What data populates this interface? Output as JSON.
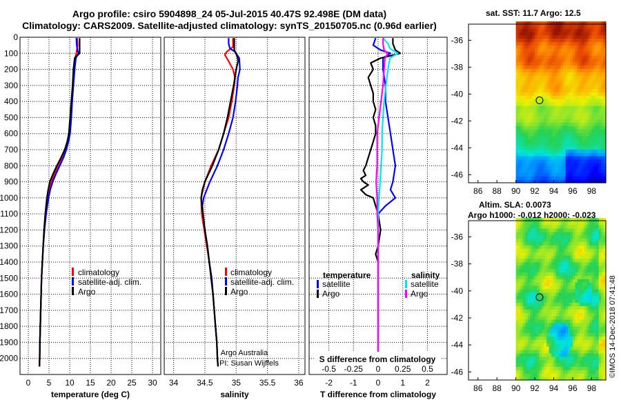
{
  "header": {
    "line1": "Argo profile: csiro 5904898_24 05-Jul-2015 40.47S 92.498E (DM data)",
    "line2": "Climatology: CARS2009. Satellite-adjusted climatology: synTS_20150705.nc (0.96d earlier)"
  },
  "colors": {
    "argo": "#000000",
    "clim": "#ff0000",
    "satclim": "#0000ff",
    "sal_sat": "#00e5ee",
    "sal_argo": "#ff00ff"
  },
  "chart_data": [
    {
      "type": "line",
      "id": "temperature",
      "xlabel": "temperature (deg C)",
      "ylabel": "",
      "xlim": [
        -2,
        32
      ],
      "ylim": [
        2100,
        0
      ],
      "x_ticks": [
        "0",
        "5",
        "10",
        "15",
        "20",
        "25",
        "30"
      ],
      "x_tick_values": [
        0,
        5,
        10,
        15,
        20,
        25,
        30
      ],
      "y_ticks": [
        "0",
        "100",
        "200",
        "300",
        "400",
        "500",
        "600",
        "700",
        "800",
        "900",
        "1000",
        "1100",
        "1200",
        "1300",
        "1400",
        "1500",
        "1600",
        "1700",
        "1800",
        "1900",
        "2000"
      ],
      "y_tick_values": [
        0,
        100,
        200,
        300,
        400,
        500,
        600,
        700,
        800,
        900,
        1000,
        1100,
        1200,
        1300,
        1400,
        1500,
        1600,
        1700,
        1800,
        1900,
        2000
      ],
      "legend": [
        {
          "label": "climatology",
          "color": "#ff0000"
        },
        {
          "label": "satellite-adj. clim.",
          "color": "#0000ff"
        },
        {
          "label": "Argo",
          "color": "#000000"
        }
      ],
      "series": [
        {
          "name": "climatology",
          "color": "#ff0000",
          "depth": [
            5,
            50,
            100,
            130,
            200,
            300,
            400,
            500,
            600,
            650,
            700,
            750,
            800,
            850,
            900,
            950,
            1000,
            1100,
            1200,
            1300,
            1400,
            1500,
            1600,
            1700,
            1800,
            1900,
            2000,
            2050
          ],
          "values": [
            11.8,
            11.9,
            11.6,
            11.3,
            11.0,
            10.8,
            10.6,
            10.3,
            10.0,
            9.6,
            9.0,
            8.2,
            7.2,
            6.3,
            5.6,
            5.1,
            4.8,
            4.3,
            3.9,
            3.6,
            3.4,
            3.2,
            3.1,
            3.0,
            2.9,
            2.8,
            2.75,
            2.7
          ]
        },
        {
          "name": "satellite-adj. clim.",
          "color": "#0000ff",
          "depth": [
            5,
            50,
            80,
            100,
            130,
            200,
            300,
            400,
            500,
            600,
            650,
            700,
            750,
            800,
            850,
            900,
            950,
            1000,
            1100,
            1200,
            1300,
            1400,
            1500,
            1600,
            1700,
            1800,
            1900,
            2000,
            2050
          ],
          "values": [
            11.6,
            11.7,
            11.9,
            12.1,
            11.5,
            11.2,
            10.9,
            10.6,
            10.4,
            10.1,
            9.7,
            9.2,
            8.5,
            7.6,
            6.7,
            5.9,
            5.3,
            4.9,
            4.3,
            3.9,
            3.6,
            3.4,
            3.2,
            3.1,
            3.0,
            2.9,
            2.8,
            2.75,
            2.7
          ]
        },
        {
          "name": "Argo",
          "color": "#000000",
          "depth": [
            5,
            30,
            60,
            100,
            110,
            130,
            200,
            300,
            400,
            500,
            600,
            650,
            700,
            750,
            800,
            850,
            900,
            950,
            1000,
            1100,
            1200,
            1300,
            1400,
            1500,
            1600,
            1700,
            1800,
            1900,
            2000,
            2050
          ],
          "values": [
            12.4,
            12.4,
            12.4,
            12.4,
            12.0,
            11.2,
            10.9,
            10.7,
            10.4,
            10.1,
            9.8,
            9.4,
            8.8,
            7.9,
            6.9,
            6.0,
            5.2,
            4.8,
            4.5,
            4.1,
            3.8,
            3.6,
            3.4,
            3.2,
            3.1,
            3.0,
            2.9,
            2.8,
            2.75,
            2.7
          ]
        }
      ]
    },
    {
      "type": "line",
      "id": "salinity",
      "xlabel": "salinity",
      "xlim": [
        33.85,
        36.1
      ],
      "ylim": [
        2100,
        0
      ],
      "x_ticks": [
        "34",
        "34.5",
        "35",
        "35.5",
        "36"
      ],
      "x_tick_values": [
        34,
        34.5,
        35,
        35.5,
        36
      ],
      "legend": [
        {
          "label": "climatology",
          "color": "#ff0000"
        },
        {
          "label": "satellite-adj. clim.",
          "color": "#0000ff"
        },
        {
          "label": "Argo",
          "color": "#000000"
        }
      ],
      "annotation": [
        "Argo Australia",
        "PI: Susan Wijffels"
      ],
      "series": [
        {
          "name": "climatology",
          "color": "#ff0000",
          "depth": [
            5,
            60,
            90,
            110,
            150,
            200,
            250,
            300,
            400,
            500,
            600,
            700,
            800,
            900,
            1000,
            1100,
            1200,
            1300,
            1400,
            1500,
            1600,
            1700,
            1800,
            1900,
            2000,
            2050
          ],
          "values": [
            34.95,
            34.95,
            34.85,
            34.82,
            34.88,
            34.95,
            34.98,
            34.97,
            34.93,
            34.88,
            34.8,
            34.72,
            34.6,
            34.5,
            34.44,
            34.45,
            34.49,
            34.53,
            34.57,
            34.6,
            34.63,
            34.65,
            34.67,
            34.69,
            34.7,
            34.71
          ]
        },
        {
          "name": "satellite-adj. clim.",
          "color": "#0000ff",
          "depth": [
            5,
            40,
            70,
            90,
            130,
            200,
            250,
            300,
            400,
            500,
            600,
            700,
            800,
            900,
            1000,
            1050,
            1100,
            1200,
            1300,
            1400,
            1500,
            1600,
            1700,
            1800,
            1900,
            2000,
            2050
          ],
          "values": [
            34.88,
            34.88,
            34.9,
            34.98,
            35.05,
            35.06,
            35.03,
            35.02,
            34.99,
            34.95,
            34.88,
            34.8,
            34.7,
            34.58,
            34.48,
            34.46,
            34.47,
            34.5,
            34.54,
            34.57,
            34.61,
            34.63,
            34.65,
            34.67,
            34.69,
            34.7,
            34.71
          ]
        },
        {
          "name": "Argo",
          "color": "#000000",
          "depth": [
            5,
            40,
            80,
            120,
            150,
            200,
            250,
            300,
            400,
            500,
            600,
            700,
            800,
            850,
            900,
            950,
            1000,
            1050,
            1100,
            1200,
            1300,
            1400,
            1500,
            1600,
            1700,
            1800,
            1900,
            2000,
            2050
          ],
          "values": [
            34.97,
            34.97,
            34.97,
            35.02,
            35.03,
            35.0,
            34.98,
            34.96,
            34.91,
            34.86,
            34.8,
            34.72,
            34.62,
            34.56,
            34.5,
            34.46,
            34.44,
            34.45,
            34.47,
            34.5,
            34.54,
            34.57,
            34.6,
            34.63,
            34.65,
            34.67,
            34.69,
            34.7,
            34.71
          ]
        }
      ]
    },
    {
      "type": "line",
      "id": "difference",
      "xlabel": "T difference from climatology",
      "xlabel2": "S difference from climatology",
      "xlim": [
        -2.8,
        2.8
      ],
      "x_ticks": [
        "-2",
        "-1",
        "0",
        "1",
        "2"
      ],
      "x_tick_values": [
        -2,
        -1,
        0,
        1,
        2
      ],
      "s_ticks": [
        "-0.5",
        "-0.25",
        "0",
        "0.25",
        "0.5"
      ],
      "s_tick_values": [
        -0.5,
        -0.25,
        0,
        0.25,
        0.5
      ],
      "ylim": [
        2100,
        0
      ],
      "legend_temperature_title": "temperature",
      "legend_salinity_title": "salinity",
      "legend_temperature": [
        {
          "label": "satellite",
          "color": "#0000ff"
        },
        {
          "label": "Argo",
          "color": "#000000"
        }
      ],
      "legend_salinity": [
        {
          "label": "satellite",
          "color": "#00e5ee"
        },
        {
          "label": "Argo",
          "color": "#ff00ff"
        }
      ],
      "series": [
        {
          "name": "T satellite",
          "color": "#0000ff",
          "depth": [
            5,
            50,
            80,
            100,
            130,
            200,
            300,
            400,
            500,
            600,
            700,
            800,
            900,
            950,
            1000,
            1050,
            1100,
            1200,
            1300,
            1400,
            1500,
            1700,
            1900,
            2050
          ],
          "values": [
            -0.1,
            -0.2,
            0.1,
            0.5,
            0.2,
            0.2,
            0.3,
            0.3,
            0.4,
            0.5,
            0.6,
            0.7,
            0.6,
            0.5,
            0.7,
            0.3,
            0.0,
            0.0,
            0.0,
            0.0,
            0.0,
            0.0,
            0.0,
            0.0
          ]
        },
        {
          "name": "T Argo",
          "color": "#000000",
          "depth": [
            5,
            40,
            80,
            100,
            130,
            160,
            200,
            250,
            300,
            350,
            400,
            450,
            500,
            550,
            600,
            650,
            700,
            750,
            800,
            830,
            860,
            880,
            900,
            920,
            950,
            980,
            1000,
            1050,
            1100,
            1200,
            1300,
            1350,
            1400,
            1500,
            1700,
            1900,
            2050
          ],
          "values": [
            0.6,
            0.6,
            0.7,
            0.9,
            0.1,
            -0.3,
            -0.2,
            -0.4,
            -0.3,
            -0.2,
            -0.2,
            -0.1,
            -0.2,
            -0.1,
            -0.1,
            -0.2,
            -0.3,
            -0.4,
            -0.5,
            -0.6,
            -0.5,
            -0.7,
            -0.6,
            -0.4,
            -0.7,
            -0.5,
            -0.2,
            -0.1,
            0.0,
            0.1,
            0.0,
            -0.1,
            0.0,
            0.0,
            0.0,
            0.0,
            0.0
          ]
        },
        {
          "name": "S satellite",
          "color": "#00e5ee",
          "depth": [
            5,
            40,
            70,
            100,
            130,
            200,
            300,
            400,
            500,
            600,
            700,
            800,
            900,
            1000,
            1100,
            1200,
            1300,
            1400,
            1500,
            1600,
            1700,
            1800,
            1900,
            2000,
            2050
          ],
          "values": [
            0.05,
            0.1,
            0.12,
            0.2,
            0.12,
            0.1,
            0.08,
            0.06,
            0.05,
            0.04,
            0.04,
            0.03,
            0.02,
            0.01,
            0.0,
            0.0,
            0.0,
            0.0,
            0.0,
            0.0,
            0.0,
            0.0,
            0.0,
            0.0,
            0.0
          ]
        },
        {
          "name": "S Argo",
          "color": "#ff00ff",
          "depth": [
            5,
            40,
            80,
            100,
            130,
            200,
            300,
            400,
            500,
            600,
            700,
            800,
            900,
            1000,
            1100,
            1200,
            1300,
            1400,
            1500,
            1600,
            1700,
            1800,
            1900,
            2000,
            2050
          ],
          "values": [
            0.05,
            0.05,
            0.06,
            0.1,
            0.07,
            0.06,
            0.05,
            0.03,
            0.01,
            -0.01,
            -0.01,
            -0.01,
            -0.02,
            -0.01,
            -0.01,
            0.0,
            0.0,
            0.0,
            0.0,
            0.0,
            0.0,
            0.0,
            0.0,
            0.0,
            0.0
          ]
        }
      ]
    },
    {
      "type": "heatmap",
      "id": "sst_map",
      "title": "sat. SST: 11.7 Argo: 12.5",
      "x_ticks": [
        "86",
        "88",
        "90",
        "92",
        "94",
        "96",
        "98"
      ],
      "x_tick_values": [
        86,
        88,
        90,
        92,
        94,
        96,
        98
      ],
      "y_ticks": [
        "-36",
        "-38",
        "-40",
        "-42",
        "-44",
        "-46"
      ],
      "y_tick_values": [
        -36,
        -38,
        -40,
        -42,
        -44,
        -46
      ],
      "xlim": [
        85,
        99.5
      ],
      "ylim": [
        -46.6,
        -34.8
      ],
      "data_extent_lon": [
        90,
        99.5
      ],
      "profile_location": [
        92.5,
        -40.47
      ]
    },
    {
      "type": "heatmap",
      "id": "sla_map",
      "title": "Altim. SLA: 0.0073",
      "subtitle": "Argo h1000: -0.012 h2000: -0.023",
      "x_ticks": [
        "86",
        "88",
        "90",
        "92",
        "94",
        "96",
        "98"
      ],
      "x_tick_values": [
        86,
        88,
        90,
        92,
        94,
        96,
        98
      ],
      "y_ticks": [
        "-36",
        "-38",
        "-40",
        "-42",
        "-44",
        "-46"
      ],
      "y_tick_values": [
        -36,
        -38,
        -40,
        -42,
        -44,
        -46
      ],
      "xlim": [
        85,
        99.5
      ],
      "ylim": [
        -46.6,
        -34.8
      ],
      "data_extent_lon": [
        90,
        99.5
      ],
      "profile_location": [
        92.5,
        -40.47
      ]
    }
  ],
  "credit": "©IMOS 14-Dec-2018 07:41:48"
}
